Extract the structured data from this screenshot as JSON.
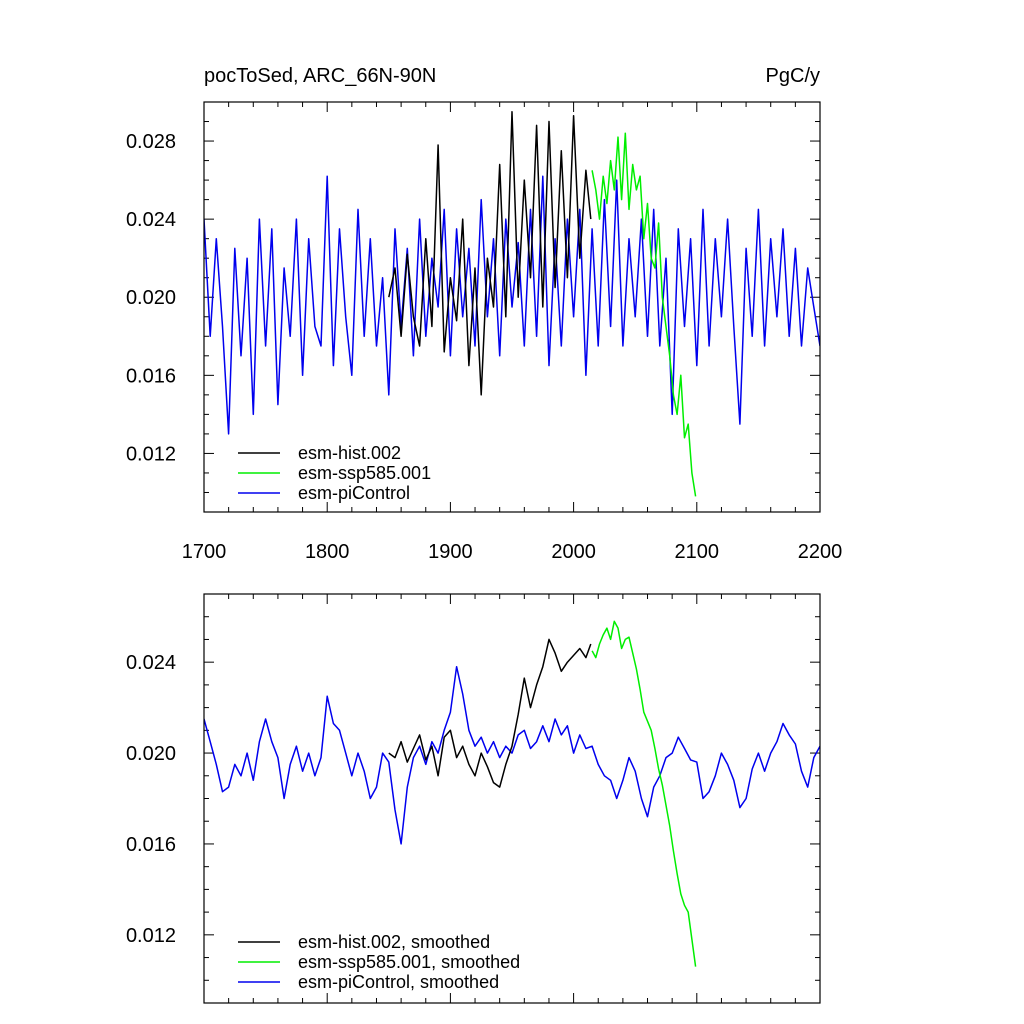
{
  "chart_data": [
    {
      "type": "line",
      "title_left": "pocToSed, ARC_66N-90N",
      "title_right": "PgC/y",
      "xlim": [
        1700,
        2200
      ],
      "ylim": [
        0.009,
        0.03
      ],
      "xticks": [
        "1700",
        "1800",
        "1900",
        "2000",
        "2100",
        "2200"
      ],
      "yticks": [
        "0.012",
        "0.016",
        "0.020",
        "0.024",
        "0.028"
      ],
      "ytick_values": [
        0.012,
        0.016,
        0.02,
        0.024,
        0.028
      ],
      "legend_position": "bottom-left",
      "series": [
        {
          "name": "esm-hist.002",
          "color": "#000000",
          "x": [
            1850,
            1855,
            1860,
            1865,
            1870,
            1875,
            1880,
            1885,
            1890,
            1895,
            1900,
            1905,
            1910,
            1915,
            1920,
            1925,
            1930,
            1935,
            1940,
            1945,
            1950,
            1955,
            1960,
            1965,
            1970,
            1975,
            1980,
            1985,
            1990,
            1995,
            2000,
            2005,
            2010,
            2014
          ],
          "y": [
            0.02,
            0.0215,
            0.018,
            0.0222,
            0.019,
            0.0175,
            0.023,
            0.0185,
            0.0278,
            0.0172,
            0.021,
            0.0188,
            0.024,
            0.0165,
            0.0215,
            0.015,
            0.022,
            0.0195,
            0.0268,
            0.019,
            0.0295,
            0.02,
            0.026,
            0.021,
            0.0288,
            0.0195,
            0.029,
            0.0205,
            0.0275,
            0.021,
            0.0293,
            0.022,
            0.0265,
            0.024
          ]
        },
        {
          "name": "esm-ssp585.001",
          "color": "#00ee00",
          "x": [
            2015,
            2018,
            2021,
            2024,
            2027,
            2030,
            2033,
            2036,
            2039,
            2042,
            2045,
            2048,
            2051,
            2054,
            2057,
            2060,
            2063,
            2066,
            2069,
            2072,
            2075,
            2078,
            2081,
            2084,
            2087,
            2090,
            2093,
            2096,
            2099
          ],
          "y": [
            0.0265,
            0.0255,
            0.024,
            0.0262,
            0.0248,
            0.027,
            0.0255,
            0.0282,
            0.025,
            0.0284,
            0.0245,
            0.0268,
            0.0255,
            0.0262,
            0.023,
            0.0248,
            0.022,
            0.0215,
            0.0238,
            0.02,
            0.0185,
            0.017,
            0.015,
            0.014,
            0.016,
            0.0128,
            0.0135,
            0.011,
            0.0098
          ]
        },
        {
          "name": "esm-piControl",
          "color": "#0000ee",
          "x": [
            1700,
            1705,
            1710,
            1715,
            1720,
            1725,
            1730,
            1735,
            1740,
            1745,
            1750,
            1755,
            1760,
            1765,
            1770,
            1775,
            1780,
            1785,
            1790,
            1795,
            1800,
            1805,
            1810,
            1815,
            1820,
            1825,
            1830,
            1835,
            1840,
            1845,
            1850,
            1855,
            1860,
            1865,
            1870,
            1875,
            1880,
            1885,
            1890,
            1895,
            1900,
            1905,
            1910,
            1915,
            1920,
            1925,
            1930,
            1935,
            1940,
            1945,
            1950,
            1955,
            1960,
            1965,
            1970,
            1975,
            1980,
            1985,
            1990,
            1995,
            2000,
            2005,
            2010,
            2015,
            2020,
            2025,
            2030,
            2035,
            2040,
            2045,
            2050,
            2055,
            2060,
            2065,
            2070,
            2075,
            2080,
            2085,
            2090,
            2095,
            2100,
            2105,
            2110,
            2115,
            2120,
            2125,
            2130,
            2135,
            2140,
            2145,
            2150,
            2155,
            2160,
            2165,
            2170,
            2175,
            2180,
            2185,
            2190,
            2195,
            2200
          ],
          "y": [
            0.024,
            0.018,
            0.023,
            0.0185,
            0.013,
            0.0225,
            0.017,
            0.022,
            0.014,
            0.024,
            0.0175,
            0.0235,
            0.0145,
            0.0215,
            0.018,
            0.024,
            0.016,
            0.023,
            0.0185,
            0.0175,
            0.0262,
            0.0165,
            0.0235,
            0.019,
            0.016,
            0.0245,
            0.018,
            0.023,
            0.0175,
            0.021,
            0.015,
            0.0235,
            0.0185,
            0.0225,
            0.017,
            0.024,
            0.018,
            0.022,
            0.0195,
            0.0245,
            0.017,
            0.0235,
            0.019,
            0.0225,
            0.0175,
            0.025,
            0.019,
            0.023,
            0.017,
            0.024,
            0.0195,
            0.0228,
            0.0175,
            0.0245,
            0.018,
            0.0262,
            0.0165,
            0.023,
            0.0175,
            0.024,
            0.019,
            0.0245,
            0.016,
            0.0235,
            0.0175,
            0.025,
            0.0185,
            0.026,
            0.0175,
            0.023,
            0.019,
            0.024,
            0.018,
            0.0245,
            0.0175,
            0.022,
            0.014,
            0.0235,
            0.0185,
            0.023,
            0.0165,
            0.0245,
            0.0175,
            0.023,
            0.019,
            0.024,
            0.0185,
            0.0135,
            0.0225,
            0.018,
            0.0245,
            0.0175,
            0.023,
            0.019,
            0.0235,
            0.018,
            0.0225,
            0.0175,
            0.0215,
            0.0195,
            0.0175
          ]
        }
      ]
    },
    {
      "type": "line",
      "xlim": [
        1700,
        2200
      ],
      "ylim": [
        0.009,
        0.027
      ],
      "xticks": [],
      "yticks": [
        "0.012",
        "0.016",
        "0.020",
        "0.024"
      ],
      "ytick_values": [
        0.012,
        0.016,
        0.02,
        0.024
      ],
      "legend_position": "bottom-left",
      "series": [
        {
          "name": "esm-hist.002, smoothed",
          "color": "#000000",
          "x": [
            1850,
            1855,
            1860,
            1865,
            1870,
            1875,
            1880,
            1885,
            1890,
            1895,
            1900,
            1905,
            1910,
            1915,
            1920,
            1925,
            1930,
            1935,
            1940,
            1945,
            1950,
            1955,
            1960,
            1965,
            1970,
            1975,
            1980,
            1985,
            1990,
            1995,
            2000,
            2005,
            2010,
            2014
          ],
          "y": [
            0.02,
            0.0198,
            0.0205,
            0.0196,
            0.0202,
            0.0208,
            0.0197,
            0.0203,
            0.019,
            0.0207,
            0.021,
            0.0198,
            0.0203,
            0.0195,
            0.019,
            0.02,
            0.0194,
            0.0187,
            0.0185,
            0.0195,
            0.0203,
            0.0217,
            0.0233,
            0.022,
            0.023,
            0.0238,
            0.025,
            0.0244,
            0.0236,
            0.024,
            0.0243,
            0.0246,
            0.0242,
            0.0248
          ]
        },
        {
          "name": "esm-ssp585.001, smoothed",
          "color": "#00ee00",
          "x": [
            2015,
            2018,
            2021,
            2024,
            2027,
            2030,
            2033,
            2036,
            2039,
            2042,
            2045,
            2048,
            2051,
            2054,
            2057,
            2060,
            2063,
            2066,
            2069,
            2072,
            2075,
            2078,
            2081,
            2084,
            2087,
            2090,
            2093,
            2096,
            2099
          ],
          "y": [
            0.0245,
            0.0242,
            0.0248,
            0.0252,
            0.0255,
            0.025,
            0.0258,
            0.0255,
            0.0246,
            0.025,
            0.0251,
            0.0244,
            0.0237,
            0.0228,
            0.0218,
            0.0214,
            0.021,
            0.0202,
            0.0193,
            0.0186,
            0.0177,
            0.0168,
            0.0157,
            0.0147,
            0.0138,
            0.0133,
            0.013,
            0.0118,
            0.0106
          ]
        },
        {
          "name": "esm-piControl, smoothed",
          "color": "#0000ee",
          "x": [
            1700,
            1705,
            1710,
            1715,
            1720,
            1725,
            1730,
            1735,
            1740,
            1745,
            1750,
            1755,
            1760,
            1765,
            1770,
            1775,
            1780,
            1785,
            1790,
            1795,
            1800,
            1805,
            1810,
            1815,
            1820,
            1825,
            1830,
            1835,
            1840,
            1845,
            1850,
            1855,
            1860,
            1865,
            1870,
            1875,
            1880,
            1885,
            1890,
            1895,
            1900,
            1905,
            1910,
            1915,
            1920,
            1925,
            1930,
            1935,
            1940,
            1945,
            1950,
            1955,
            1960,
            1965,
            1970,
            1975,
            1980,
            1985,
            1990,
            1995,
            2000,
            2005,
            2010,
            2015,
            2020,
            2025,
            2030,
            2035,
            2040,
            2045,
            2050,
            2055,
            2060,
            2065,
            2070,
            2075,
            2080,
            2085,
            2090,
            2095,
            2100,
            2105,
            2110,
            2115,
            2120,
            2125,
            2130,
            2135,
            2140,
            2145,
            2150,
            2155,
            2160,
            2165,
            2170,
            2175,
            2180,
            2185,
            2190,
            2195,
            2200
          ],
          "y": [
            0.0215,
            0.0205,
            0.0195,
            0.0183,
            0.0185,
            0.0195,
            0.019,
            0.02,
            0.0188,
            0.0205,
            0.0215,
            0.0205,
            0.0198,
            0.018,
            0.0195,
            0.0203,
            0.0192,
            0.02,
            0.019,
            0.0198,
            0.0225,
            0.0213,
            0.021,
            0.02,
            0.019,
            0.02,
            0.0192,
            0.018,
            0.0185,
            0.02,
            0.0196,
            0.0175,
            0.016,
            0.0185,
            0.0198,
            0.0203,
            0.0195,
            0.0205,
            0.02,
            0.021,
            0.0218,
            0.0238,
            0.0226,
            0.021,
            0.0203,
            0.0207,
            0.02,
            0.0205,
            0.0198,
            0.0203,
            0.02,
            0.0208,
            0.021,
            0.0202,
            0.0205,
            0.0212,
            0.0205,
            0.0215,
            0.0208,
            0.0212,
            0.02,
            0.0208,
            0.0202,
            0.0203,
            0.0195,
            0.019,
            0.0188,
            0.018,
            0.0188,
            0.0198,
            0.0192,
            0.018,
            0.0172,
            0.0185,
            0.019,
            0.0198,
            0.02,
            0.0207,
            0.0202,
            0.0197,
            0.0196,
            0.018,
            0.0183,
            0.019,
            0.02,
            0.0195,
            0.0188,
            0.0176,
            0.018,
            0.0193,
            0.02,
            0.0192,
            0.02,
            0.0205,
            0.0213,
            0.0208,
            0.0204,
            0.0192,
            0.0185,
            0.0198,
            0.0203
          ]
        }
      ]
    }
  ]
}
